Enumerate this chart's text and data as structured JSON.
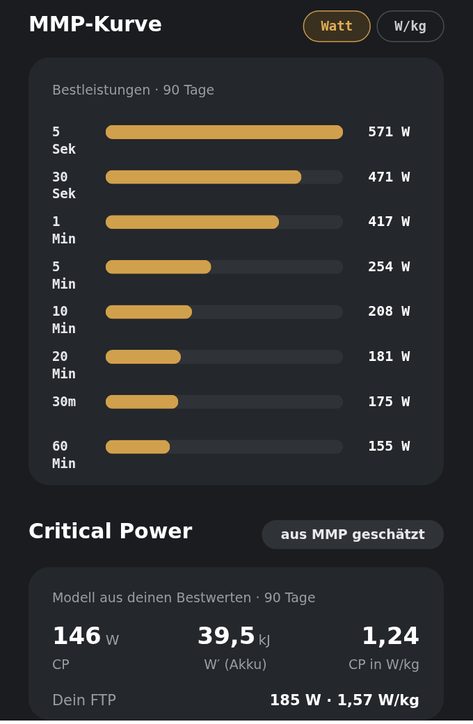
{
  "chart_data": [
    {
      "type": "bar",
      "orientation": "horizontal",
      "title": "MMP-Kurve",
      "subtitle": "Bestleistungen · 90 Tage",
      "categories": [
        "5 Sek",
        "30 Sek",
        "1 Min",
        "5 Min",
        "10 Min",
        "20 Min",
        "30m",
        "60 Min"
      ],
      "values": [
        571,
        471,
        417,
        254,
        208,
        181,
        175,
        155
      ],
      "value_labels": [
        "571 W",
        "471 W",
        "417 W",
        "254 W",
        "208 W",
        "181 W",
        "175 W",
        "155 W"
      ],
      "color": "#d1a04c",
      "annotations": [
        "Watt",
        "W/kg"
      ]
    },
    {
      "type": "other",
      "title": "Critical Power",
      "annotations": [
        "aus MMP geschätzt",
        "Modell aus deinen Bestwerten · 90 Tage",
        "146",
        "W",
        "CP",
        "39,5",
        "kJ",
        "W′ (Akku)",
        "1,24",
        "CP in W/kg",
        "Dein FTP",
        "185 W  ·  1,57 W/kg"
      ]
    }
  ]
}
